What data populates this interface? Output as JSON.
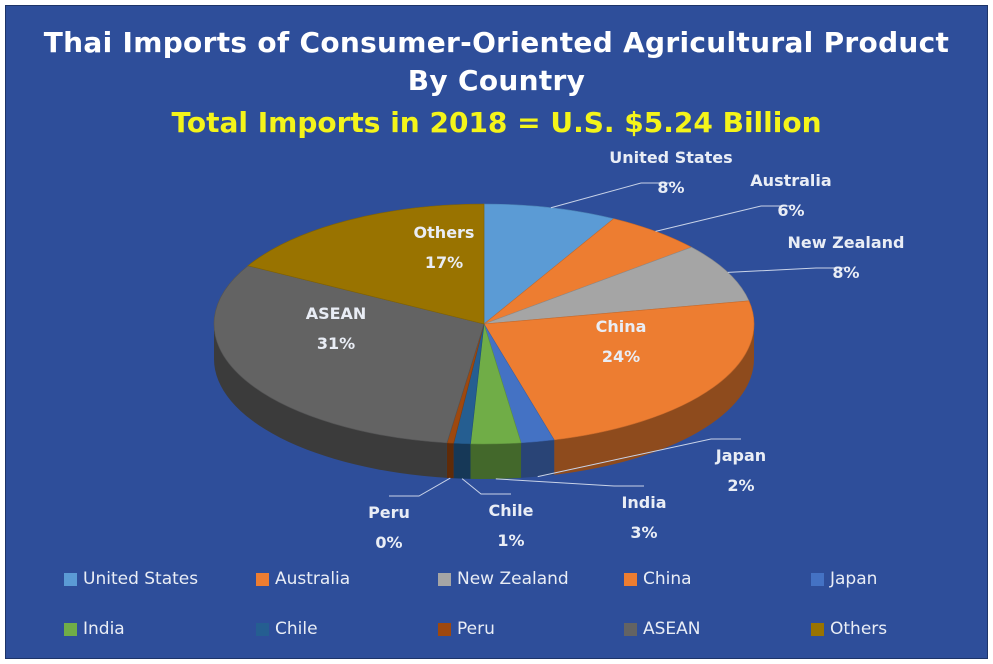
{
  "chart_data": {
    "type": "pie",
    "title_line1": "Thai Imports of Consumer-Oriented Agricultural Product",
    "title_line2": "By Country",
    "subtitle": "Total Imports in 2018 = U.S. $5.24 Billion",
    "legend_position": "bottom",
    "slices": [
      {
        "name": "United States",
        "value": 8,
        "label": "8%",
        "color": "#5b9bd5"
      },
      {
        "name": "Australia",
        "value": 6,
        "label": "6%",
        "color": "#ed7d31"
      },
      {
        "name": "New Zealand",
        "value": 8,
        "label": "8%",
        "color": "#a5a5a5"
      },
      {
        "name": "China",
        "value": 24,
        "label": "24%",
        "color": "#ed7d31"
      },
      {
        "name": "Japan",
        "value": 2,
        "label": "2%",
        "color": "#4472c4"
      },
      {
        "name": "India",
        "value": 3,
        "label": "3%",
        "color": "#70ad47"
      },
      {
        "name": "Chile",
        "value": 1,
        "label": "1%",
        "color": "#255e91"
      },
      {
        "name": "Peru",
        "value": 0.4,
        "label": "0%",
        "color": "#9e480e"
      },
      {
        "name": "ASEAN",
        "value": 31,
        "label": "31%",
        "color": "#636363"
      },
      {
        "name": "Others",
        "value": 17,
        "label": "17%",
        "color": "#997300"
      }
    ]
  }
}
